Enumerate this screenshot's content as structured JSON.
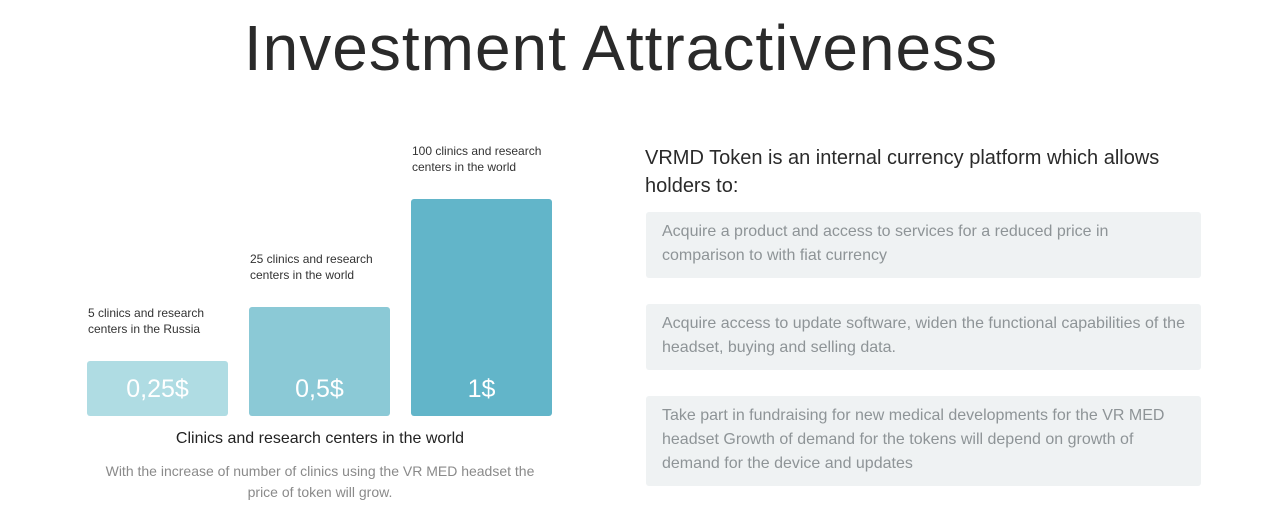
{
  "header": {
    "title": "Investment Attractiveness"
  },
  "chart_data": {
    "type": "bar",
    "categories": [
      "5 clinics and research\ncenters in the Russia",
      "25 clinics and research\ncenters in the world",
      "100 clinics and research\ncenters in the world"
    ],
    "values": [
      0.25,
      0.5,
      1
    ],
    "value_labels": [
      "0,25$",
      "0,5$",
      "1$"
    ],
    "colors": [
      "#afdce3",
      "#8bc9d6",
      "#62b5c9"
    ],
    "xlabel": "Clinics and research centers in the world",
    "ylabel": "",
    "title": "",
    "ylim": [
      0,
      1
    ],
    "grid": false,
    "note": "With the increase of number of clinics using the VR MED headset the price of token will grow."
  },
  "token": {
    "heading": "VRMD Token is an internal currency platform which allows holders to:",
    "benefits": [
      "Acquire a product and access to services for a reduced price in comparison to with fiat currency",
      "Acquire access to update software, widen the functional capabilities of the headset, buying and selling data.",
      "Take part in fundraising for new medical developments for the VR MED headset Growth of demand for the tokens will depend on growth of demand for the device and updates"
    ]
  }
}
